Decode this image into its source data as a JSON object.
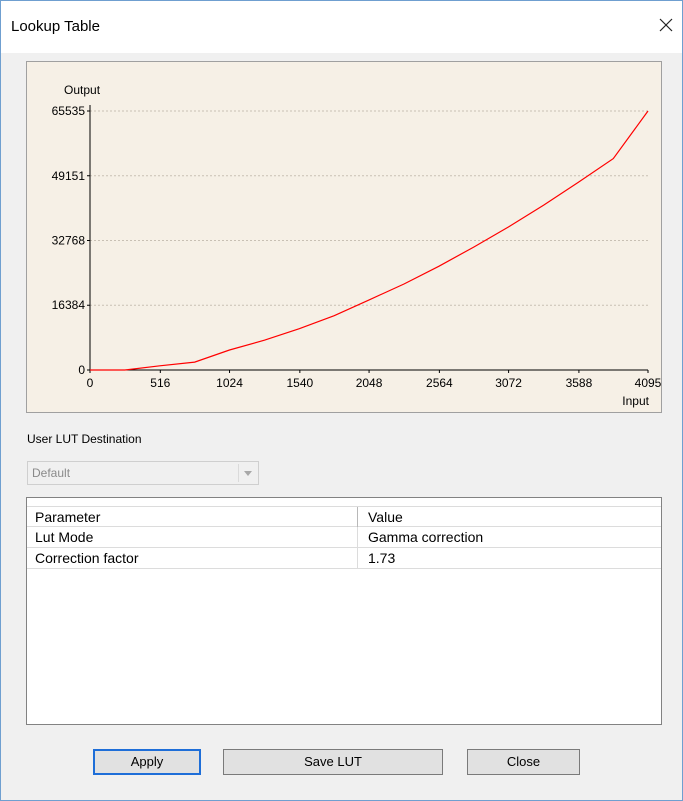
{
  "window": {
    "title": "Lookup Table"
  },
  "chart_data": {
    "type": "line",
    "ylabel": "Output",
    "xlabel": "Input",
    "x_ticks": [
      0,
      516,
      1024,
      1540,
      2048,
      2564,
      3072,
      3588,
      4095
    ],
    "y_ticks": [
      0,
      16384,
      32768,
      49151,
      65535
    ],
    "xlim": [
      0,
      4095
    ],
    "ylim": [
      0,
      65535
    ],
    "grid": true,
    "series": [
      {
        "color": "#ff0000",
        "x": [
          0,
          256,
          512,
          768,
          1024,
          1280,
          1536,
          1792,
          2048,
          2304,
          2560,
          2816,
          3072,
          3328,
          3584,
          3840,
          4095
        ],
        "y": [
          0,
          0,
          1070,
          2000,
          5050,
          7550,
          10450,
          13750,
          17750,
          21750,
          26250,
          31100,
          36200,
          41700,
          47500,
          53500,
          65535
        ]
      }
    ],
    "background": "#f6f0e6"
  },
  "destination": {
    "label": "User LUT Destination",
    "value": "Default"
  },
  "params_table": {
    "headers": [
      "Parameter",
      "Value"
    ],
    "rows": [
      {
        "param": "Lut Mode",
        "value": "Gamma correction"
      },
      {
        "param": "Correction factor",
        "value": "1.73"
      }
    ]
  },
  "buttons": {
    "apply": "Apply",
    "save_lut": "Save LUT",
    "close": "Close"
  },
  "icons": {
    "close": "close-icon",
    "dropdown": "chevron-down-icon"
  }
}
